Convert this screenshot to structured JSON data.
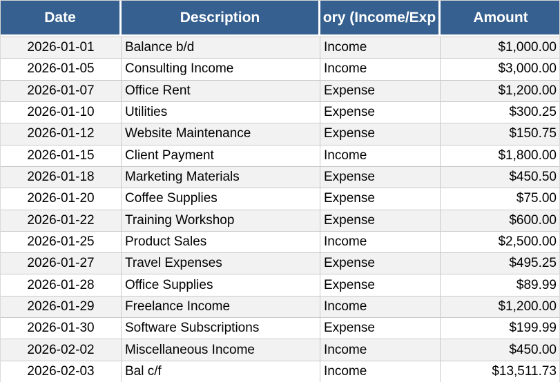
{
  "table": {
    "header": {
      "date": "Date",
      "description": "Description",
      "category": "ory (Income/Exp",
      "amount": "Amount"
    },
    "rows": [
      {
        "date": "2026-01-01",
        "description": "Balance b/d",
        "category": "Income",
        "amount": "$1,000.00"
      },
      {
        "date": "2026-01-05",
        "description": "Consulting Income",
        "category": "Income",
        "amount": "$3,000.00"
      },
      {
        "date": "2026-01-07",
        "description": "Office Rent",
        "category": "Expense",
        "amount": "$1,200.00"
      },
      {
        "date": "2026-01-10",
        "description": "Utilities",
        "category": "Expense",
        "amount": "$300.25"
      },
      {
        "date": "2026-01-12",
        "description": "Website Maintenance",
        "category": "Expense",
        "amount": "$150.75"
      },
      {
        "date": "2026-01-15",
        "description": "Client Payment",
        "category": "Income",
        "amount": "$1,800.00"
      },
      {
        "date": "2026-01-18",
        "description": "Marketing Materials",
        "category": "Expense",
        "amount": "$450.50"
      },
      {
        "date": "2026-01-20",
        "description": "Coffee Supplies",
        "category": "Expense",
        "amount": "$75.00"
      },
      {
        "date": "2026-01-22",
        "description": "Training Workshop",
        "category": "Expense",
        "amount": "$600.00"
      },
      {
        "date": "2026-01-25",
        "description": "Product Sales",
        "category": "Income",
        "amount": "$2,500.00"
      },
      {
        "date": "2026-01-27",
        "description": "Travel Expenses",
        "category": "Expense",
        "amount": "$495.25"
      },
      {
        "date": "2026-01-28",
        "description": "Office Supplies",
        "category": "Expense",
        "amount": "$89.99"
      },
      {
        "date": "2026-01-29",
        "description": "Freelance Income",
        "category": "Income",
        "amount": "$1,200.00"
      },
      {
        "date": "2026-01-30",
        "description": "Software Subscriptions",
        "category": "Expense",
        "amount": "$199.99"
      },
      {
        "date": "2026-02-02",
        "description": "Miscellaneous Income",
        "category": "Income",
        "amount": "$450.00"
      },
      {
        "date": "2026-02-03",
        "description": "Bal c/f",
        "category": "Income",
        "amount": "$13,511.73"
      }
    ]
  },
  "colors": {
    "header_bg": "#35608F",
    "header_text": "#FFFFFF",
    "stripe": "#F2F2F2",
    "row_bg": "#FFFFFF",
    "grid": "#C9C9C9",
    "text": "#000000"
  }
}
